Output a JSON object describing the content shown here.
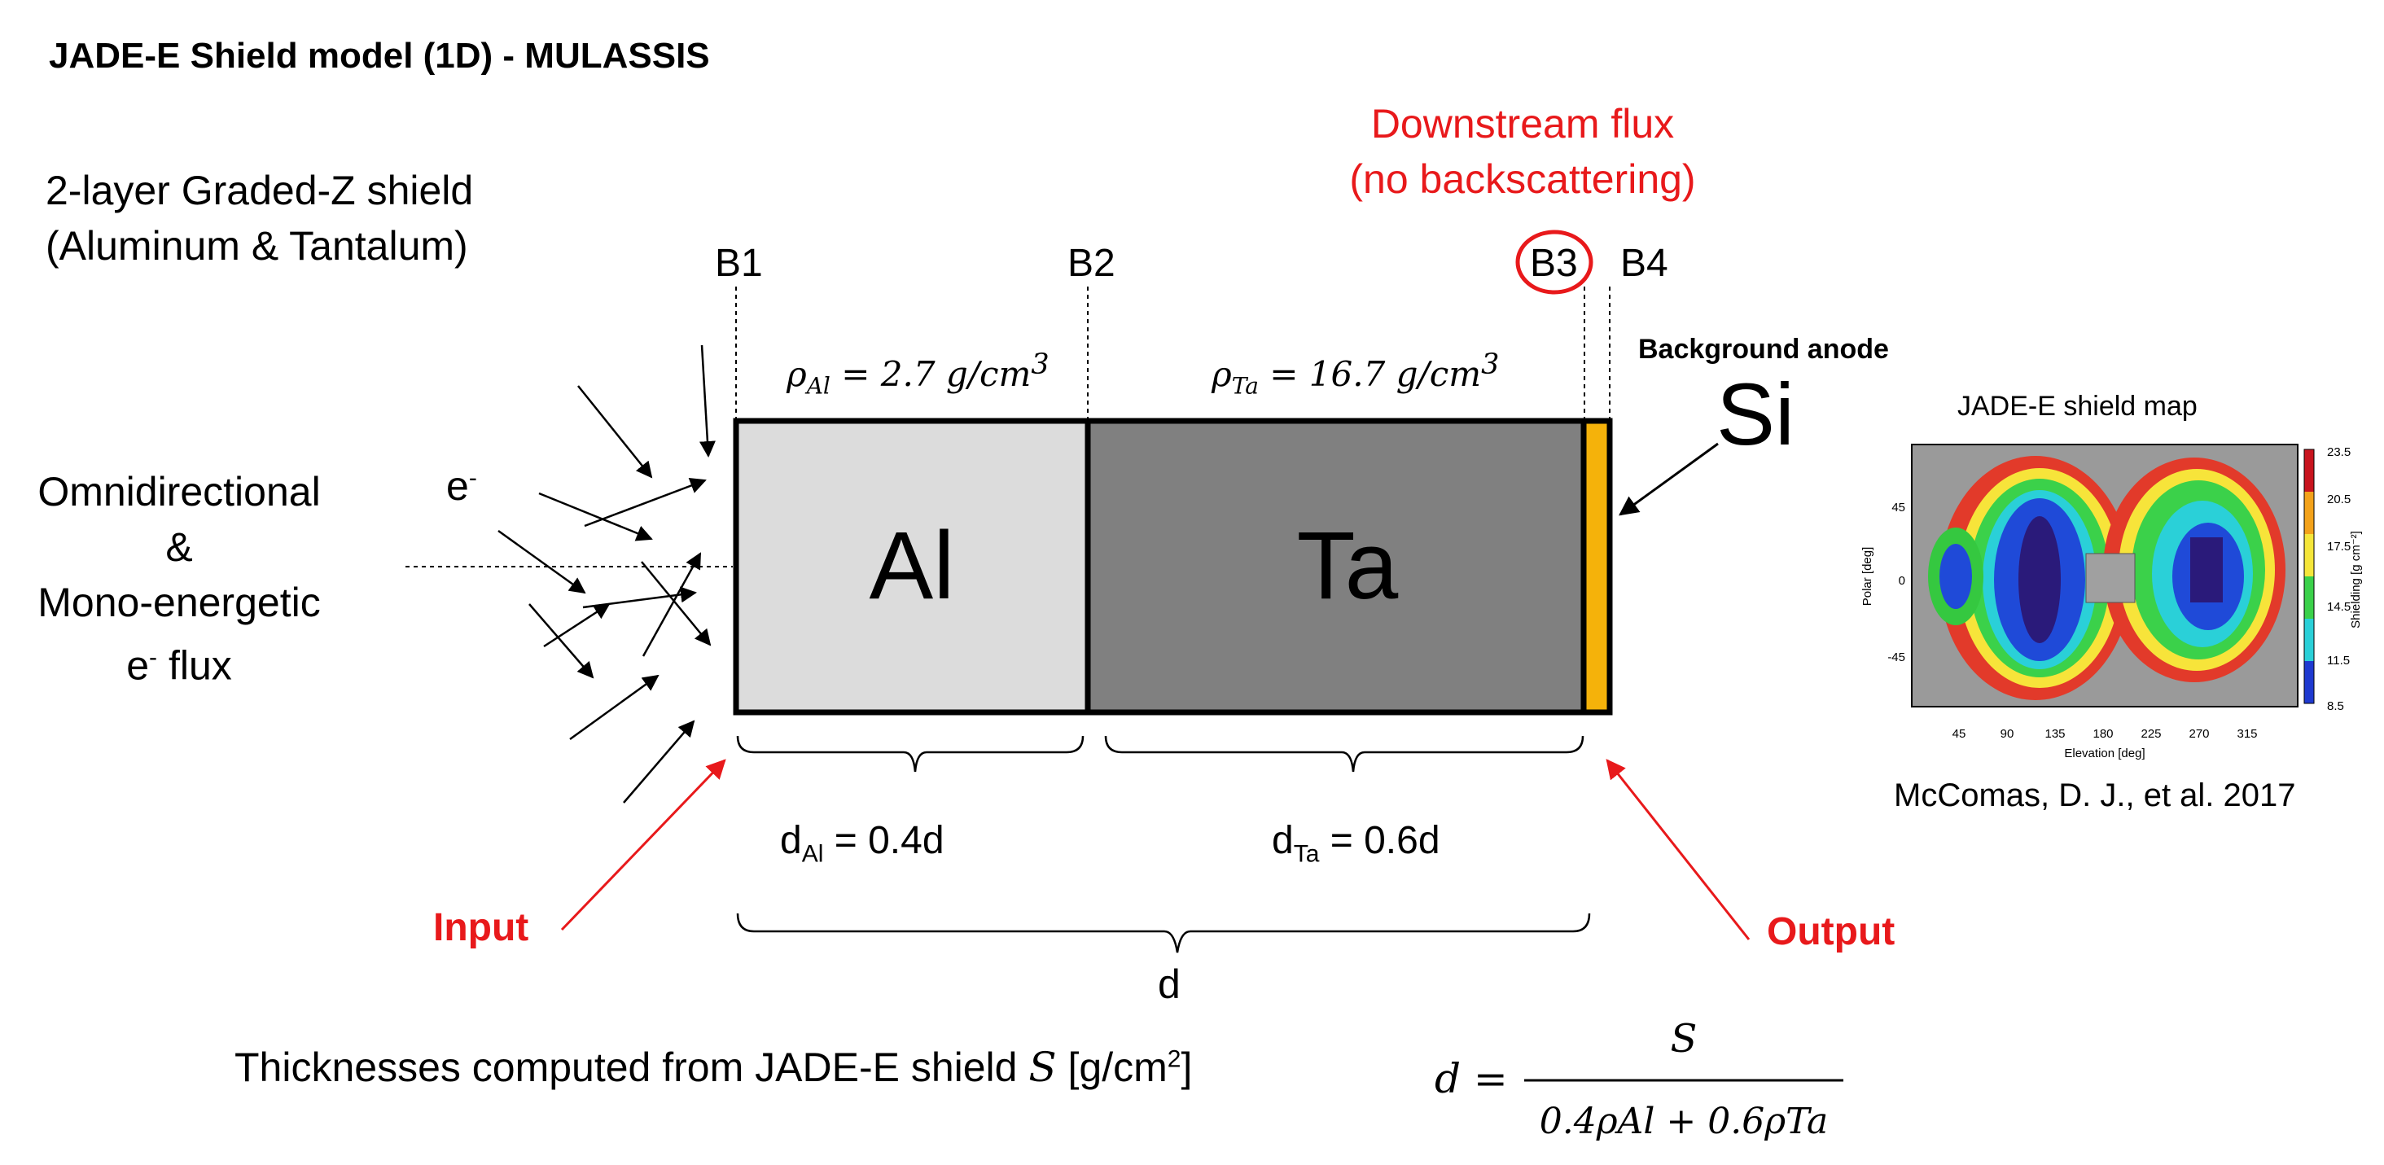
{
  "title": "JADE-E Shield model (1D) - MULASSIS",
  "subtitle": {
    "line1": "2-layer Graded-Z shield",
    "line2": "(Aluminum & Tantalum)"
  },
  "downstream": {
    "line1": "Downstream flux",
    "line2": "(no backscattering)"
  },
  "boundaries": [
    "B1",
    "B2",
    "B3",
    "B4"
  ],
  "layers": {
    "al": {
      "symbol": "Al",
      "rho_symbol": "ρ",
      "rho_sub": "Al",
      "rho_value": "= 2.7 g/cm",
      "rho_exp": "3",
      "thickness_prefix": "d",
      "thickness_sub": "Al",
      "thickness_value": " = 0.4d",
      "color": "#dcdcdc"
    },
    "ta": {
      "symbol": "Ta",
      "rho_symbol": "ρ",
      "rho_sub": "Ta",
      "rho_value": "= 16.7 g/cm",
      "rho_exp": "3",
      "thickness_prefix": "d",
      "thickness_sub": "Ta",
      "thickness_value": " = 0.6d",
      "color": "#808080"
    },
    "anode_color": "#f5b20a"
  },
  "background_anode": "Background anode",
  "si": "Si",
  "flux": {
    "electron": "e",
    "minus": "-",
    "line1": "Omnidirectional",
    "line2": "&",
    "line3": "Mono-energetic",
    "line4_pre": "e",
    "line4_sup": "-",
    "line4_post": " flux"
  },
  "input_label": "Input",
  "output_label": "Output",
  "d_label": "d",
  "bottom": {
    "text_pre": "Thicknesses computed from JADE-E shield ",
    "text_var": "S",
    "text_unit_pre": " [g/cm",
    "text_unit_exp": "2",
    "text_unit_post": "]"
  },
  "formula": {
    "lhs": "d =",
    "numerator": "S",
    "denominator": "0.4ρAl + 0.6ρTa"
  },
  "map": {
    "title": "JADE-E shield map",
    "caption": "McComas, D. J., et al. 2017",
    "ylabel": "Polar [deg]",
    "xlabel": "Elevation [deg]",
    "colorbar_label": "Shielding [g cm⁻²]",
    "x_ticks": [
      "45",
      "90",
      "135",
      "180",
      "225",
      "270",
      "315"
    ],
    "y_ticks": [
      "45",
      "0",
      "-45"
    ],
    "colorbar_ticks": [
      "23.5",
      "20.5",
      "17.5",
      "14.5",
      "11.5",
      "8.5"
    ]
  },
  "colors": {
    "accent_red": "#e8191b",
    "outline": "#000000"
  }
}
